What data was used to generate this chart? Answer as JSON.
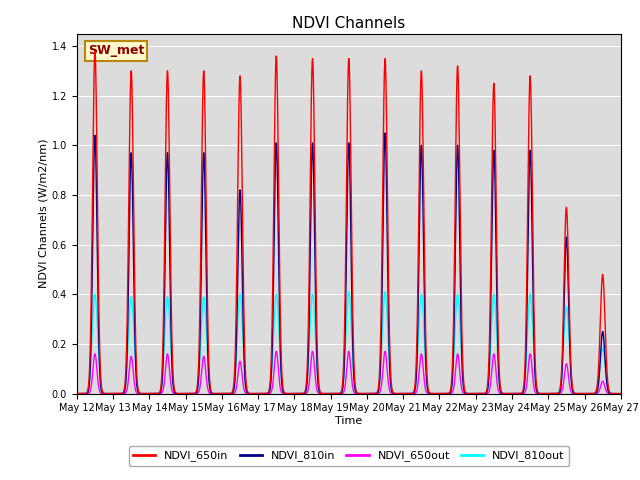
{
  "title": "NDVI Channels",
  "xlabel": "Time",
  "ylabel": "NDVI Channels (W/m2/nm)",
  "ylim": [
    0,
    1.45
  ],
  "yticks": [
    0.0,
    0.2,
    0.4,
    0.6,
    0.8,
    1.0,
    1.2,
    1.4
  ],
  "colors": {
    "NDVI_650in": "#FF0000",
    "NDVI_810in": "#00008B",
    "NDVI_650out": "#FF00FF",
    "NDVI_810out": "#00FFFF"
  },
  "annotation_text": "SW_met",
  "annotation_color": "#8B0000",
  "annotation_bg": "#FFFACD",
  "background_color": "#DCDCDC",
  "linewidth": 1.0,
  "num_days": 15,
  "points_per_day": 288,
  "peak_650in": [
    1.38,
    1.3,
    1.3,
    1.3,
    1.28,
    1.36,
    1.35,
    1.35,
    1.35,
    1.3,
    1.32,
    1.25,
    1.28,
    0.75,
    0.48
  ],
  "peak_810in": [
    1.04,
    0.97,
    0.97,
    0.97,
    0.82,
    1.01,
    1.01,
    1.01,
    1.05,
    1.0,
    1.0,
    0.98,
    0.98,
    0.63,
    0.25
  ],
  "peak_650out": [
    0.16,
    0.15,
    0.16,
    0.15,
    0.13,
    0.17,
    0.17,
    0.17,
    0.17,
    0.16,
    0.16,
    0.16,
    0.16,
    0.12,
    0.05
  ],
  "peak_810out": [
    0.4,
    0.39,
    0.39,
    0.39,
    0.4,
    0.4,
    0.4,
    0.41,
    0.41,
    0.4,
    0.4,
    0.4,
    0.4,
    0.35,
    0.18
  ],
  "xtick_labels": [
    "May 12",
    "May 13",
    "May 14",
    "May 15",
    "May 16",
    "May 17",
    "May 18",
    "May 19",
    "May 20",
    "May 21",
    "May 22",
    "May 23",
    "May 24",
    "May 25",
    "May 26",
    "May 27"
  ],
  "title_fontsize": 11,
  "label_fontsize": 8,
  "tick_fontsize": 7,
  "legend_fontsize": 8
}
